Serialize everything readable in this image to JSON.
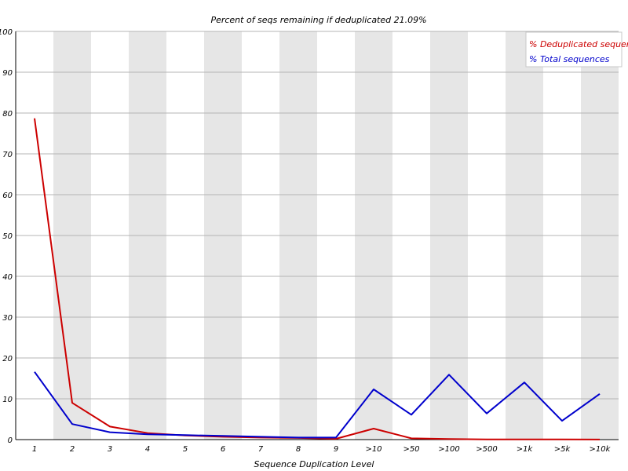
{
  "chart_data": {
    "type": "line",
    "title": "Percent of seqs remaining if deduplicated 21.09%",
    "xlabel": "Sequence Duplication Level",
    "ylabel": "",
    "categories": [
      "1",
      "2",
      "3",
      "4",
      "5",
      "6",
      "7",
      "8",
      "9",
      ">10",
      ">50",
      ">100",
      ">500",
      ">1k",
      ">5k",
      ">10k"
    ],
    "ylim": [
      0,
      100
    ],
    "yticks": [
      0,
      10,
      20,
      30,
      40,
      50,
      60,
      70,
      80,
      90,
      100
    ],
    "grid": true,
    "legend_position": "top-right",
    "series": [
      {
        "name": "% Deduplicated sequences",
        "color": "#cc0000",
        "values": [
          78.7,
          9.0,
          3.2,
          1.6,
          1.0,
          0.7,
          0.5,
          0.4,
          0.2,
          2.7,
          0.3,
          0.15,
          0.05,
          0.05,
          0.03,
          0.02
        ]
      },
      {
        "name": "% Total sequences",
        "color": "#0000cc",
        "values": [
          16.6,
          3.8,
          1.8,
          1.3,
          1.1,
          0.9,
          0.7,
          0.5,
          0.5,
          12.3,
          6.1,
          15.9,
          6.4,
          14.0,
          4.6,
          11.2
        ]
      }
    ]
  }
}
